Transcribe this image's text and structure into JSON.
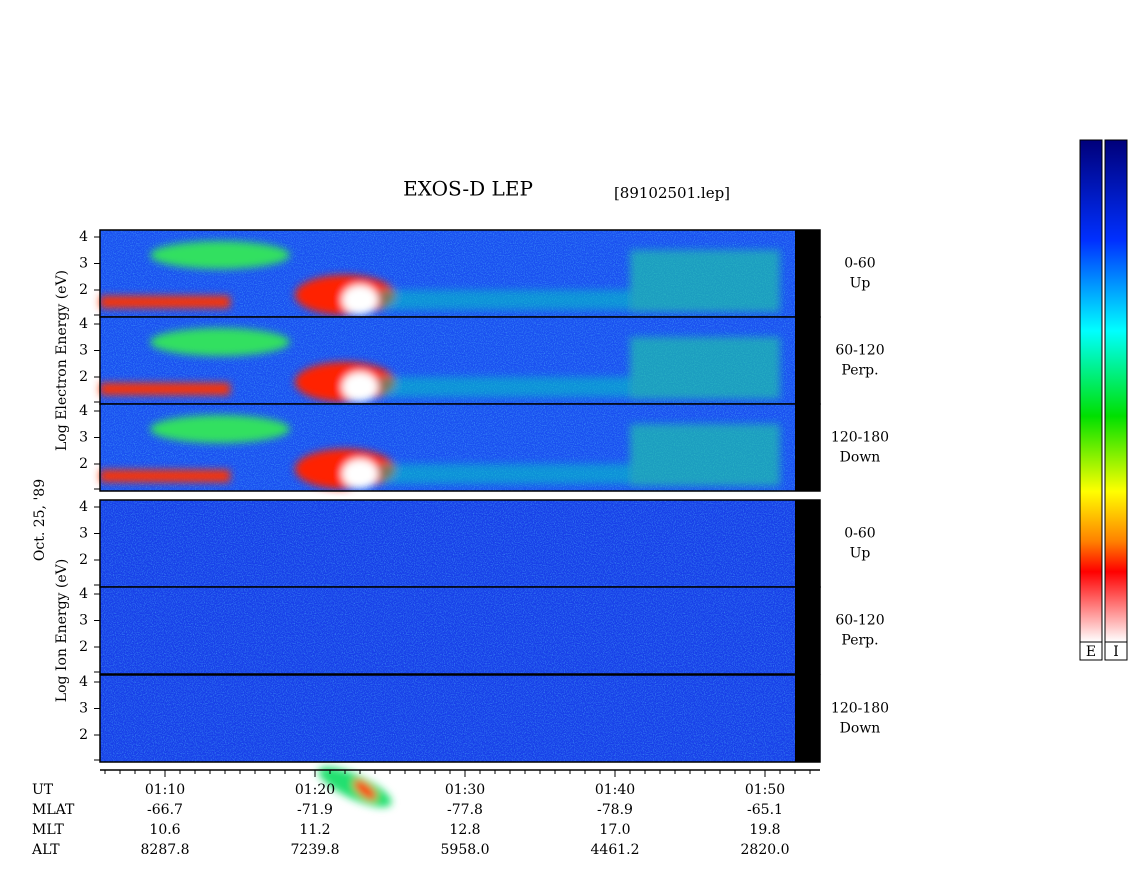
{
  "title": "EXOS-D LEP",
  "file": "[89102501.lep]",
  "date": "Oct. 25, '89",
  "groups": [
    {
      "axis_label": "Log Electron Energy (eV)"
    },
    {
      "axis_label": "Log Ion Energy (eV)"
    }
  ],
  "channels": [
    {
      "angle": "0-60",
      "dir": "Up"
    },
    {
      "angle": "60-120",
      "dir": "Perp."
    },
    {
      "angle": "120-180",
      "dir": "Down"
    }
  ],
  "yticks": [
    "4",
    "3",
    "2"
  ],
  "rows": [
    {
      "label": "UT",
      "values": [
        "01:10",
        "01:20",
        "01:30",
        "01:40",
        "01:50"
      ]
    },
    {
      "label": "MLAT",
      "values": [
        "-66.7",
        "-71.9",
        "-77.8",
        "-78.9",
        "-65.1"
      ]
    },
    {
      "label": "MLT",
      "values": [
        "10.6",
        "11.2",
        "12.8",
        "17.0",
        "19.8"
      ]
    },
    {
      "label": "ALT",
      "values": [
        "8287.8",
        "7239.8",
        "5958.0",
        "4461.2",
        "2820.0"
      ]
    }
  ],
  "colorbars": [
    "E",
    "I"
  ]
}
